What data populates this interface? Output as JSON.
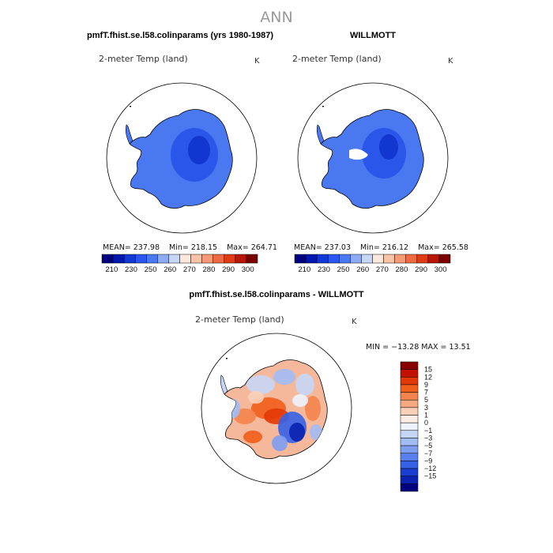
{
  "page_title": "ANN",
  "panels": [
    {
      "heading": "pmfT.fhist.se.l58.colinparams (yrs 1980-1987)",
      "variable": "2-meter Temp (land)",
      "units": "K",
      "stats": {
        "mean_label": "MEAN=",
        "mean": "237.98",
        "min_label": "Min=",
        "min": "218.15",
        "max_label": "Max=",
        "max": "264.71"
      },
      "colorbar_ticks": [
        "210",
        "230",
        "250",
        "260",
        "270",
        "280",
        "290",
        "300"
      ]
    },
    {
      "heading": "WILLMOTT",
      "variable": "2-meter Temp (land)",
      "units": "K",
      "stats": {
        "mean_label": "MEAN=",
        "mean": "237.03",
        "min_label": "Min=",
        "min": "216.12",
        "max_label": "Max=",
        "max": "265.58"
      },
      "colorbar_ticks": [
        "210",
        "230",
        "250",
        "260",
        "270",
        "280",
        "290",
        "300"
      ]
    }
  ],
  "diff_panel": {
    "heading": "pmfT.fhist.se.l58.colinparams - WILLMOTT",
    "variable": "2-meter Temp (land)",
    "units": "K",
    "minmax_text": "MIN = −13.28  MAX =  13.51",
    "colorbar_ticks": [
      "15",
      "12",
      "9",
      "7",
      "5",
      "3",
      "1",
      "0",
      "−1",
      "−3",
      "−5",
      "−7",
      "−9",
      "−12",
      "−15"
    ]
  },
  "colors": {
    "abs_scale": [
      "#000080",
      "#0018b0",
      "#1238d6",
      "#2a55ee",
      "#4a78f0",
      "#8eaaf2",
      "#c6d6f6",
      "#fce8dc",
      "#f8c4a8",
      "#f49a76",
      "#ee6a42",
      "#de3c14",
      "#b81606",
      "#7a0000"
    ],
    "diff_scale": [
      "#8a0000",
      "#c41000",
      "#e23806",
      "#f25e1c",
      "#f4844c",
      "#f6a880",
      "#fad0b8",
      "#fcece4",
      "#eef2fc",
      "#c6d6f6",
      "#a2bcf4",
      "#7e9ef2",
      "#5a80f0",
      "#3660e8",
      "#1a3ed2",
      "#0a22b0",
      "#000080"
    ],
    "land_colder": "#1236d0",
    "land_mid": "#2a56ea",
    "land_edge": "#4a78f0",
    "outline": "#000000"
  }
}
